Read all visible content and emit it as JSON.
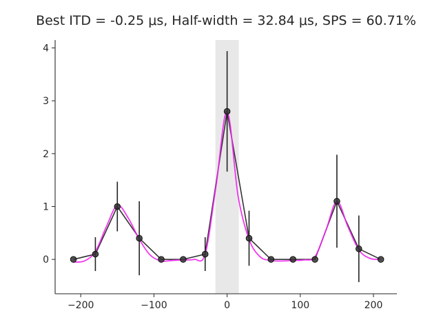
{
  "chart_data": {
    "type": "line",
    "title": "Best ITD = -0.25 μs, Half-width = 32.84 μs, SPS = 60.71%",
    "xlabel": "",
    "ylabel": "",
    "xlim": [
      -235,
      232
    ],
    "ylim": [
      -0.65,
      4.15
    ],
    "xticks": [
      -200,
      -100,
      0,
      100,
      200
    ],
    "yticks": [
      0,
      1,
      2,
      3,
      4
    ],
    "xtick_labels": [
      "−200",
      "−100",
      "0",
      "100",
      "200"
    ],
    "ytick_labels": [
      "0",
      "1",
      "2",
      "3",
      "4"
    ],
    "grid": false,
    "shaded_region": {
      "x": [
        -16,
        16
      ],
      "color": "#e8e8e8"
    },
    "series": [
      {
        "type": "errorbar-line",
        "color": "#333333",
        "points": [
          {
            "x": -210,
            "y": 0.0,
            "err": 0.0
          },
          {
            "x": -180,
            "y": 0.1,
            "err": 0.32
          },
          {
            "x": -150,
            "y": 1.0,
            "err": 0.47
          },
          {
            "x": -120,
            "y": 0.4,
            "err": 0.7
          },
          {
            "x": -90,
            "y": 0.0,
            "err": 0.0
          },
          {
            "x": -60,
            "y": 0.0,
            "err": 0.0
          },
          {
            "x": -30,
            "y": 0.1,
            "err": 0.32
          },
          {
            "x": 0,
            "y": 2.8,
            "err": 1.14
          },
          {
            "x": 30,
            "y": 0.4,
            "err": 0.52
          },
          {
            "x": 60,
            "y": 0.0,
            "err": 0.0
          },
          {
            "x": 90,
            "y": 0.0,
            "err": 0.0
          },
          {
            "x": 120,
            "y": 0.0,
            "err": 0.0
          },
          {
            "x": 150,
            "y": 1.1,
            "err": 0.88
          },
          {
            "x": 180,
            "y": 0.2,
            "err": 0.63
          },
          {
            "x": 210,
            "y": 0.0,
            "err": 0.0
          }
        ]
      },
      {
        "type": "smooth-fit",
        "color": "#ee22ee",
        "x": [
          -210,
          -195,
          -180,
          -165,
          -150,
          -135,
          -120,
          -105,
          -90,
          -75,
          -60,
          -45,
          -30,
          -15,
          0,
          15,
          30,
          45,
          60,
          75,
          90,
          105,
          120,
          135,
          150,
          165,
          180,
          195,
          210
        ],
        "y": [
          -0.05,
          -0.03,
          0.15,
          0.62,
          1.02,
          0.78,
          0.38,
          0.08,
          -0.03,
          -0.02,
          -0.01,
          0.0,
          0.1,
          1.4,
          2.8,
          1.2,
          0.38,
          0.05,
          -0.02,
          -0.03,
          -0.02,
          -0.01,
          0.05,
          0.55,
          1.1,
          0.62,
          0.18,
          0.02,
          0.0
        ]
      }
    ]
  }
}
